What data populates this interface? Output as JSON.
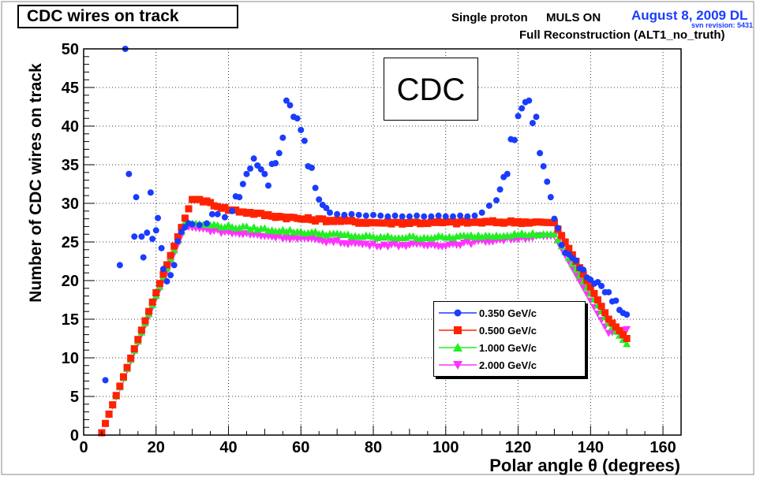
{
  "header": {
    "title": "CDC wires on track",
    "particle": "Single proton",
    "muls": "MULS ON",
    "date": "August 8, 2009 DL",
    "revision": "svn revision: 5431",
    "reco": "Full Reconstruction (ALT1_no_truth)"
  },
  "annotation": "CDC",
  "colors": {
    "blue": "#1a3cff",
    "red": "#ff2200",
    "green": "#22ee22",
    "magenta": "#ff33ff",
    "revision_blue": "#1a3cff"
  },
  "chart_data": {
    "type": "scatter",
    "title": "CDC wires on track",
    "xlabel": "Polar angle θ (degrees)",
    "ylabel": "Number of CDC wires on track",
    "xlim": [
      0,
      165
    ],
    "ylim": [
      0,
      50
    ],
    "xticks": [
      0,
      20,
      40,
      60,
      80,
      100,
      120,
      140,
      160
    ],
    "yticks": [
      0,
      5,
      10,
      15,
      20,
      25,
      30,
      35,
      40,
      45,
      50
    ],
    "grid": true,
    "legend_position": "lower-right",
    "series": [
      {
        "name": "0.350 GeV/c",
        "marker": "circle",
        "color": "#1a3cff",
        "points": [
          [
            6,
            7.1
          ],
          [
            10,
            22
          ],
          [
            11.5,
            50
          ],
          [
            12.5,
            33.8
          ],
          [
            14,
            25.7
          ],
          [
            14.5,
            30.8
          ],
          [
            16,
            25.7
          ],
          [
            16.5,
            23
          ],
          [
            17.5,
            26.2
          ],
          [
            18.5,
            31.4
          ],
          [
            19,
            25.4
          ],
          [
            20,
            26.5
          ],
          [
            20.5,
            28.1
          ],
          [
            21.5,
            24.2
          ],
          [
            22,
            21.5
          ],
          [
            23,
            19.9
          ],
          [
            24,
            20.7
          ],
          [
            25,
            22
          ],
          [
            26,
            25.1
          ],
          [
            27,
            26.3
          ],
          [
            28,
            26.9
          ],
          [
            29,
            27.4
          ],
          [
            30,
            27.3
          ],
          [
            32,
            27.2
          ],
          [
            34,
            27.4
          ],
          [
            35.5,
            28.6
          ],
          [
            37,
            28.6
          ],
          [
            39,
            28.2
          ],
          [
            41,
            29
          ],
          [
            42,
            30.9
          ],
          [
            43,
            30.8
          ],
          [
            44,
            32.5
          ],
          [
            45,
            33.8
          ],
          [
            46,
            34.5
          ],
          [
            47,
            35.8
          ],
          [
            48,
            34.9
          ],
          [
            49,
            34.4
          ],
          [
            50,
            33.8
          ],
          [
            51,
            32.3
          ],
          [
            52,
            35.1
          ],
          [
            53,
            35.2
          ],
          [
            54,
            36.5
          ],
          [
            55,
            38.5
          ],
          [
            56,
            43.3
          ],
          [
            57,
            42.7
          ],
          [
            58,
            41.2
          ],
          [
            59,
            41
          ],
          [
            60,
            39.5
          ],
          [
            61,
            38.1
          ],
          [
            62,
            34.8
          ],
          [
            63,
            34.6
          ],
          [
            64,
            32
          ],
          [
            65,
            30.5
          ],
          [
            66,
            29.8
          ],
          [
            67,
            29.4
          ],
          [
            68,
            28.8
          ],
          [
            70,
            28.6
          ],
          [
            72,
            28.5
          ],
          [
            74,
            28.6
          ],
          [
            76,
            28.5
          ],
          [
            78,
            28.4
          ],
          [
            80,
            28.5
          ],
          [
            82,
            28.4
          ],
          [
            84,
            28.3
          ],
          [
            86,
            28.4
          ],
          [
            88,
            28.3
          ],
          [
            90,
            28.3
          ],
          [
            92,
            28.4
          ],
          [
            94,
            28.3
          ],
          [
            96,
            28.3
          ],
          [
            98,
            28.4
          ],
          [
            100,
            28.3
          ],
          [
            102,
            28.3
          ],
          [
            104,
            28.4
          ],
          [
            106,
            28.3
          ],
          [
            108,
            28.4
          ],
          [
            110,
            28.8
          ],
          [
            112,
            29.7
          ],
          [
            114,
            30.4
          ],
          [
            115,
            31.8
          ],
          [
            116,
            33.4
          ],
          [
            117,
            33.8
          ],
          [
            118,
            38.3
          ],
          [
            119,
            38.2
          ],
          [
            120,
            41.3
          ],
          [
            121,
            42.3
          ],
          [
            122,
            43.1
          ],
          [
            123,
            43.3
          ],
          [
            124,
            40.4
          ],
          [
            125,
            41.2
          ],
          [
            126,
            36.5
          ],
          [
            127,
            34.8
          ],
          [
            128,
            32.8
          ],
          [
            129,
            30.8
          ],
          [
            130,
            28
          ],
          [
            131,
            26.8
          ],
          [
            132,
            24.6
          ],
          [
            133,
            23.6
          ],
          [
            134,
            23.4
          ],
          [
            135,
            22.9
          ],
          [
            136,
            22.6
          ],
          [
            137,
            21.6
          ],
          [
            138,
            21.4
          ],
          [
            139,
            20.4
          ],
          [
            140,
            20.1
          ],
          [
            141,
            19.6
          ],
          [
            142,
            19.8
          ],
          [
            143,
            19.3
          ],
          [
            144,
            18.5
          ],
          [
            145,
            18.5
          ],
          [
            146,
            17.3
          ],
          [
            147,
            17.4
          ],
          [
            148,
            16.2
          ],
          [
            149,
            15.8
          ],
          [
            150,
            15.6
          ]
        ]
      },
      {
        "name": "0.500 GeV/c",
        "marker": "square",
        "color": "#ff2200",
        "points": "generated"
      },
      {
        "name": "1.000 GeV/c",
        "marker": "triangle-up",
        "color": "#22ee22",
        "points": "generated"
      },
      {
        "name": "2.000 GeV/c",
        "marker": "triangle-down",
        "color": "#ff33ff",
        "points": "generated"
      }
    ],
    "curves": {
      "0.500 GeV/c": {
        "rise": [
          [
            5,
            0.3
          ],
          [
            30,
            30.5
          ]
        ],
        "plateau": [
          [
            30,
            30.5
          ],
          [
            32,
            30.5
          ],
          [
            40,
            29.2
          ],
          [
            50,
            28.5
          ],
          [
            60,
            28
          ],
          [
            80,
            27.5
          ],
          [
            100,
            27.5
          ],
          [
            120,
            27.6
          ],
          [
            130,
            27.5
          ]
        ],
        "fall": [
          [
            130,
            27.5
          ],
          [
            145,
            15
          ],
          [
            150,
            12.5
          ]
        ]
      },
      "1.000 GeV/c": {
        "rise": [
          [
            5,
            0.3
          ],
          [
            28,
            27.5
          ]
        ],
        "plateau": [
          [
            28,
            27.5
          ],
          [
            40,
            27
          ],
          [
            60,
            26.3
          ],
          [
            80,
            25.6
          ],
          [
            100,
            25.6
          ],
          [
            120,
            26
          ],
          [
            130,
            26
          ]
        ],
        "fall": [
          [
            130,
            26
          ],
          [
            145,
            14.5
          ],
          [
            150,
            11.8
          ]
        ]
      },
      "2.000 GeV/c": {
        "rise": [
          [
            5,
            0.3
          ],
          [
            28,
            27
          ]
        ],
        "plateau": [
          [
            28,
            27
          ],
          [
            40,
            26.2
          ],
          [
            60,
            25.4
          ],
          [
            80,
            24.6
          ],
          [
            100,
            24.6
          ],
          [
            120,
            25.5
          ],
          [
            130,
            25.8
          ]
        ],
        "fall": [
          [
            130,
            25.8
          ],
          [
            145,
            13.2
          ],
          [
            150,
            13.7
          ]
        ]
      }
    }
  }
}
